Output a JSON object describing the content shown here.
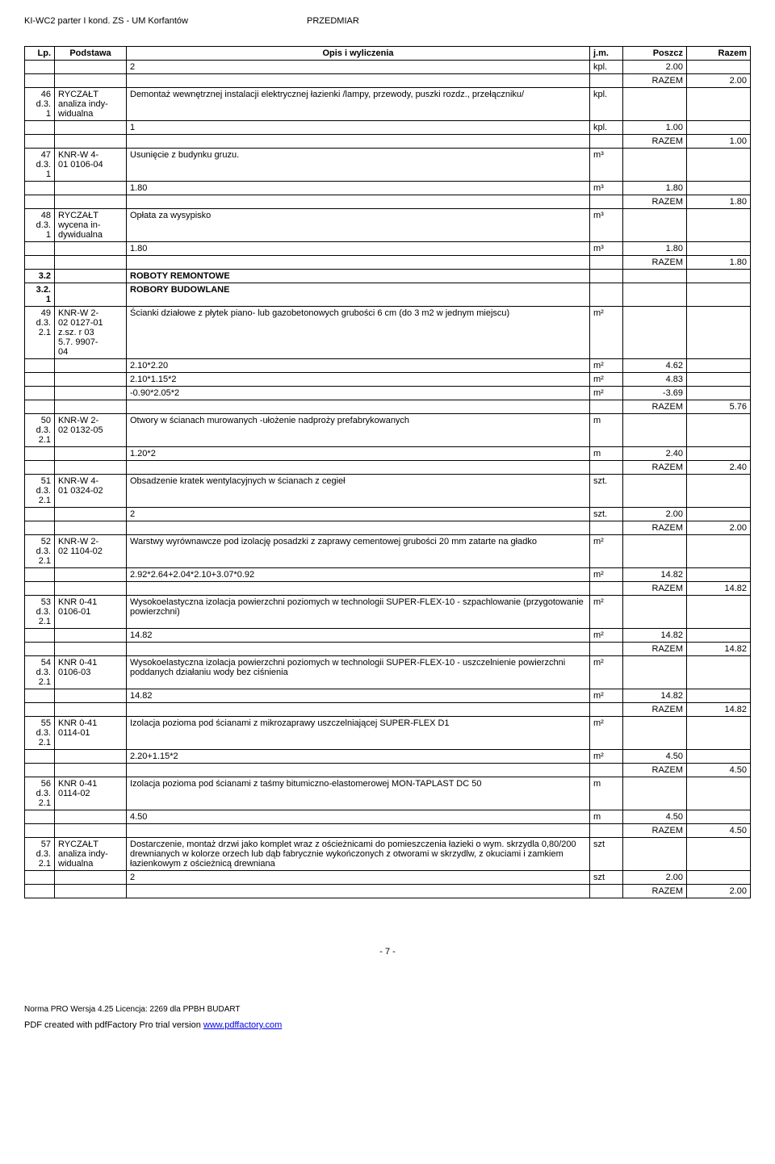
{
  "header": {
    "left": "KI-WC2 parter I kond.   ZS - UM Korfantów",
    "right": "PRZEDMIAR"
  },
  "columns": [
    "Lp.",
    "Podstawa",
    "Opis i wyliczenia",
    "j.m.",
    "Poszcz",
    "Razem"
  ],
  "rows": [
    {
      "lp": "",
      "pod": "",
      "opis": "2",
      "jm": "kpl.",
      "poszcz": "2.00",
      "razem": ""
    },
    {
      "lp": "",
      "pod": "",
      "opis": "",
      "jm": "",
      "poszcz": "RAZEM",
      "razem": "2.00",
      "israzem": true
    },
    {
      "lp": "46\nd.3.\n1",
      "pod": "RYCZAŁT\nanaliza indy-\nwidualna",
      "opis": "Demontaż wewnętrznej instalacji elektrycznej łazienki /lampy, przewody, puszki rozdz., przełączniku/",
      "jm": "kpl.",
      "poszcz": "",
      "razem": ""
    },
    {
      "lp": "",
      "pod": "",
      "opis": "1",
      "jm": "kpl.",
      "poszcz": "1.00",
      "razem": ""
    },
    {
      "lp": "",
      "pod": "",
      "opis": "",
      "jm": "",
      "poszcz": "RAZEM",
      "razem": "1.00",
      "israzem": true
    },
    {
      "lp": "47\nd.3.\n1",
      "pod": "KNR-W 4-\n01 0106-04",
      "opis": "Usunięcie z budynku gruzu.",
      "jm": "m³",
      "poszcz": "",
      "razem": ""
    },
    {
      "lp": "",
      "pod": "",
      "opis": "1.80",
      "jm": "m³",
      "poszcz": "1.80",
      "razem": ""
    },
    {
      "lp": "",
      "pod": "",
      "opis": "",
      "jm": "",
      "poszcz": "RAZEM",
      "razem": "1.80",
      "israzem": true
    },
    {
      "lp": "48\nd.3.\n1",
      "pod": "RYCZAŁT\nwycena in-\ndywidualna",
      "opis": "Opłata za wysypisko",
      "jm": "m³",
      "poszcz": "",
      "razem": ""
    },
    {
      "lp": "",
      "pod": "",
      "opis": "1.80",
      "jm": "m³",
      "poszcz": "1.80",
      "razem": ""
    },
    {
      "lp": "",
      "pod": "",
      "opis": "",
      "jm": "",
      "poszcz": "RAZEM",
      "razem": "1.80",
      "israzem": true
    },
    {
      "lp": "3.2",
      "pod": "",
      "opis": "ROBOTY REMONTOWE",
      "jm": "",
      "poszcz": "",
      "razem": "",
      "bold": true
    },
    {
      "lp": "3.2.\n1",
      "pod": "",
      "opis": "ROBORY BUDOWLANE",
      "jm": "",
      "poszcz": "",
      "razem": "",
      "bold": true
    },
    {
      "lp": "49\nd.3.\n2.1",
      "pod": "KNR-W 2-\n02 0127-01\nz.sz. r 03\n5.7. 9907-\n04",
      "opis": "Ścianki działowe z płytek piano- lub gazobetonowych grubości 6 cm (do 3 m2 w jednym miejscu)",
      "jm": "m²",
      "poszcz": "",
      "razem": ""
    },
    {
      "lp": "",
      "pod": "",
      "opis": "2.10*2.20",
      "jm": "m²",
      "poszcz": "4.62",
      "razem": ""
    },
    {
      "lp": "",
      "pod": "",
      "opis": "2.10*1.15*2",
      "jm": "m²",
      "poszcz": "4.83",
      "razem": ""
    },
    {
      "lp": "",
      "pod": "",
      "opis": "-0.90*2.05*2",
      "jm": "m²",
      "poszcz": "-3.69",
      "razem": ""
    },
    {
      "lp": "",
      "pod": "",
      "opis": "",
      "jm": "",
      "poszcz": "RAZEM",
      "razem": "5.76",
      "israzem": true
    },
    {
      "lp": "50\nd.3.\n2.1",
      "pod": "KNR-W 2-\n02 0132-05",
      "opis": "Otwory w ścianach murowanych -ułożenie nadproży prefabrykowanych",
      "jm": "m",
      "poszcz": "",
      "razem": ""
    },
    {
      "lp": "",
      "pod": "",
      "opis": "1.20*2",
      "jm": "m",
      "poszcz": "2.40",
      "razem": ""
    },
    {
      "lp": "",
      "pod": "",
      "opis": "",
      "jm": "",
      "poszcz": "RAZEM",
      "razem": "2.40",
      "israzem": true
    },
    {
      "lp": "51\nd.3.\n2.1",
      "pod": "KNR-W 4-\n01 0324-02",
      "opis": "Obsadzenie kratek wentylacyjnych w ścianach z cegieł",
      "jm": "szt.",
      "poszcz": "",
      "razem": ""
    },
    {
      "lp": "",
      "pod": "",
      "opis": "2",
      "jm": "szt.",
      "poszcz": "2.00",
      "razem": ""
    },
    {
      "lp": "",
      "pod": "",
      "opis": "",
      "jm": "",
      "poszcz": "RAZEM",
      "razem": "2.00",
      "israzem": true
    },
    {
      "lp": "52\nd.3.\n2.1",
      "pod": "KNR-W 2-\n02 1104-02",
      "opis": "Warstwy wyrównawcze pod izolację posadzki z zaprawy cementowej grubości 20 mm zatarte na gładko",
      "jm": "m²",
      "poszcz": "",
      "razem": ""
    },
    {
      "lp": "",
      "pod": "",
      "opis": "2.92*2.64+2.04*2.10+3.07*0.92",
      "jm": "m²",
      "poszcz": "14.82",
      "razem": ""
    },
    {
      "lp": "",
      "pod": "",
      "opis": "",
      "jm": "",
      "poszcz": "RAZEM",
      "razem": "14.82",
      "israzem": true
    },
    {
      "lp": "53\nd.3.\n2.1",
      "pod": "KNR 0-41\n0106-01",
      "opis": "Wysokoelastyczna izolacja powierzchni poziomych w technologii SUPER-FLEX-10 - szpachlowanie (przygotowanie powierzchni)",
      "jm": "m²",
      "poszcz": "",
      "razem": ""
    },
    {
      "lp": "",
      "pod": "",
      "opis": "14.82",
      "jm": "m²",
      "poszcz": "14.82",
      "razem": ""
    },
    {
      "lp": "",
      "pod": "",
      "opis": "",
      "jm": "",
      "poszcz": "RAZEM",
      "razem": "14.82",
      "israzem": true
    },
    {
      "lp": "54\nd.3.\n2.1",
      "pod": "KNR 0-41\n0106-03",
      "opis": "Wysokoelastyczna izolacja powierzchni poziomych w technologii SUPER-FLEX-10 - uszczelnienie powierzchni poddanych działaniu wody bez ciśnienia",
      "jm": "m²",
      "poszcz": "",
      "razem": ""
    },
    {
      "lp": "",
      "pod": "",
      "opis": "14.82",
      "jm": "m²",
      "poszcz": "14.82",
      "razem": ""
    },
    {
      "lp": "",
      "pod": "",
      "opis": "",
      "jm": "",
      "poszcz": "RAZEM",
      "razem": "14.82",
      "israzem": true
    },
    {
      "lp": "55\nd.3.\n2.1",
      "pod": "KNR 0-41\n0114-01",
      "opis": "Izolacja pozioma pod ścianami z mikrozaprawy uszczelniającej SUPER-FLEX D1",
      "jm": "m²",
      "poszcz": "",
      "razem": ""
    },
    {
      "lp": "",
      "pod": "",
      "opis": "2.20+1.15*2",
      "jm": "m²",
      "poszcz": "4.50",
      "razem": ""
    },
    {
      "lp": "",
      "pod": "",
      "opis": "",
      "jm": "",
      "poszcz": "RAZEM",
      "razem": "4.50",
      "israzem": true
    },
    {
      "lp": "56\nd.3.\n2.1",
      "pod": "KNR 0-41\n0114-02",
      "opis": "Izolacja pozioma pod ścianami z taśmy bitumiczno-elastomerowej MON-TAPLAST DC 50",
      "jm": "m",
      "poszcz": "",
      "razem": ""
    },
    {
      "lp": "",
      "pod": "",
      "opis": "4.50",
      "jm": "m",
      "poszcz": "4.50",
      "razem": ""
    },
    {
      "lp": "",
      "pod": "",
      "opis": "",
      "jm": "",
      "poszcz": "RAZEM",
      "razem": "4.50",
      "israzem": true
    },
    {
      "lp": "57\nd.3.\n2.1",
      "pod": "RYCZAŁT\nanaliza indy-\nwidualna",
      "opis": "Dostarczenie, montaż drzwi jako komplet wraz z ościeżnicami do pomieszczenia łazieki o wym. skrzydla 0,80/200 drewnianych w kolorze orzech lub dąb fabrycznie wykończonych z otworami w skrzydlw, z okuciami i zamkiem łazienkowym z ościeżnicą drewniana",
      "jm": "szt",
      "poszcz": "",
      "razem": ""
    },
    {
      "lp": "",
      "pod": "",
      "opis": "2",
      "jm": "szt",
      "poszcz": "2.00",
      "razem": ""
    },
    {
      "lp": "",
      "pod": "",
      "opis": "",
      "jm": "",
      "poszcz": "RAZEM",
      "razem": "2.00",
      "israzem": true
    }
  ],
  "pagenum": "- 7 -",
  "footer1": "Norma PRO Wersja 4.25 Licencja: 2269 dla PPBH BUDART",
  "footer2_prefix": "PDF created with pdfFactory Pro trial version ",
  "footer2_link": "www.pdffactory.com"
}
